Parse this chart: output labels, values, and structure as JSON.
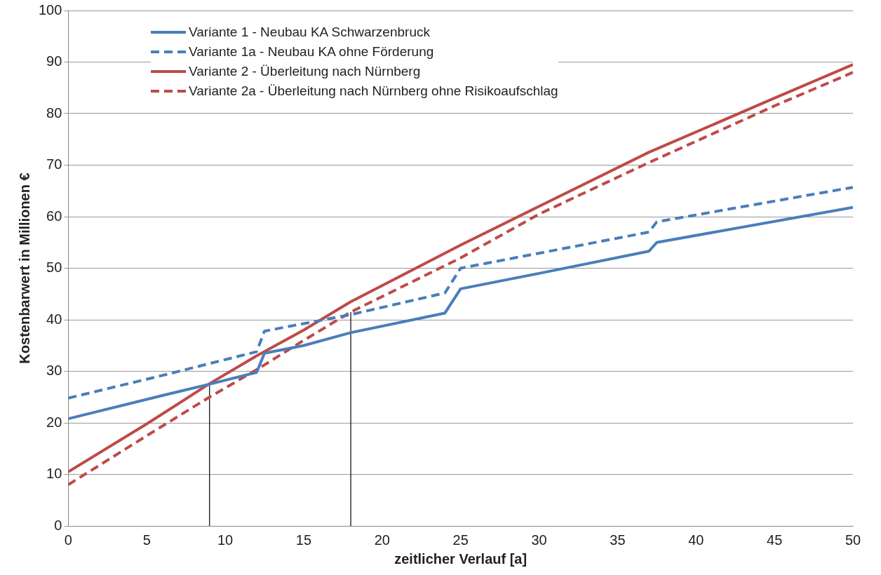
{
  "chart_data": {
    "type": "line",
    "xlabel": "zeitlicher Verlauf [a]",
    "ylabel": "Kostenbarwert in Millionen €",
    "xlim": [
      0,
      50
    ],
    "xticks": [
      0,
      5,
      10,
      15,
      20,
      25,
      30,
      35,
      40,
      45,
      50
    ],
    "ylim": [
      0,
      100
    ],
    "yticks": [
      0,
      10,
      20,
      30,
      40,
      50,
      60,
      70,
      80,
      90,
      100
    ],
    "grid": "y",
    "legend": "top left",
    "marker": "none",
    "series": [
      {
        "name": "Variante 1 - Neubau KA Schwarzenbruck",
        "color": "#4a7ebb",
        "line_style": "solid",
        "x": [
          0,
          6,
          9,
          12,
          12.5,
          15,
          18,
          24,
          25,
          30,
          37,
          37.5,
          50
        ],
        "values": [
          20.8,
          25.3,
          27.5,
          29.8,
          33.5,
          35,
          37.5,
          41.3,
          46,
          49,
          53.3,
          55,
          61.8
        ]
      },
      {
        "name": "Variante 1a - Neubau KA ohne Förderung",
        "color": "#4a7ebb",
        "line_style": "dashed",
        "x": [
          0,
          6,
          12,
          12.5,
          18,
          24,
          25,
          37,
          37.5,
          50
        ],
        "values": [
          24.8,
          29.2,
          33.8,
          37.8,
          41,
          45.2,
          50,
          57,
          59,
          65.7
        ]
      },
      {
        "name": "Variante 2 - Überleitung nach Nürnberg",
        "color": "#be4b48",
        "line_style": "solid",
        "x": [
          0,
          5,
          9,
          12,
          15,
          18,
          25,
          30,
          37,
          45,
          50
        ],
        "values": [
          10.5,
          19.8,
          27.6,
          33,
          38,
          43.5,
          54.5,
          62,
          72.5,
          83,
          89.5
        ]
      },
      {
        "name": "Variante 2a - Überleitung nach Nürnberg ohne Risikoaufschlag",
        "color": "#be4b48",
        "line_style": "dashed",
        "x": [
          0,
          5,
          9,
          12,
          15,
          18,
          25,
          30,
          37,
          45,
          50
        ],
        "values": [
          8,
          17.5,
          25,
          30.3,
          36,
          41.5,
          52,
          60.5,
          70.5,
          81.5,
          88
        ]
      },
      {
        "color": "#000000",
        "line_style": "solid",
        "x": [
          9,
          9
        ],
        "values": [
          0,
          27.5
        ]
      },
      {
        "color": "#000000",
        "line_style": "solid",
        "x": [
          18,
          18
        ],
        "values": [
          0,
          41.5
        ]
      }
    ]
  }
}
